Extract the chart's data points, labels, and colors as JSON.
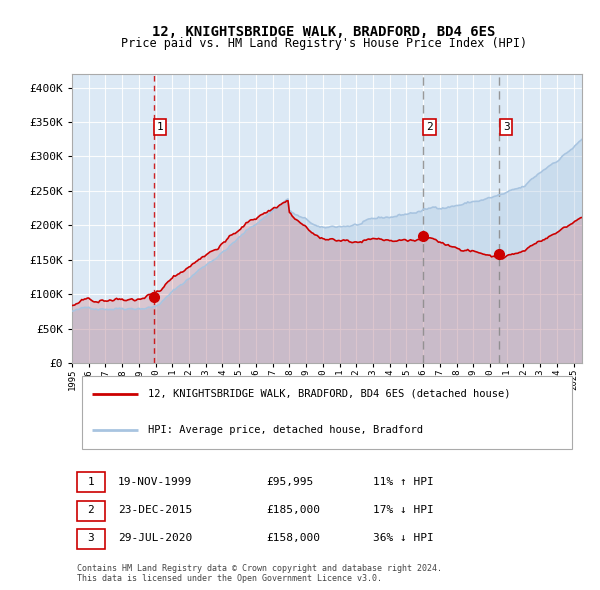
{
  "title": "12, KNIGHTSBRIDGE WALK, BRADFORD, BD4 6ES",
  "subtitle": "Price paid vs. HM Land Registry's House Price Index (HPI)",
  "transactions": [
    {
      "num": 1,
      "date": "19-NOV-1999",
      "price": 95995,
      "pct": "11%",
      "dir": "↑",
      "x_year": 1999.88
    },
    {
      "num": 2,
      "date": "23-DEC-2015",
      "price": 185000,
      "pct": "17%",
      "dir": "↓",
      "x_year": 2015.97
    },
    {
      "num": 3,
      "date": "29-JUL-2020",
      "price": 158000,
      "pct": "36%",
      "dir": "↓",
      "x_year": 2020.56
    }
  ],
  "legend_line1": "12, KNIGHTSBRIDGE WALK, BRADFORD, BD4 6ES (detached house)",
  "legend_line2": "HPI: Average price, detached house, Bradford",
  "footer": "Contains HM Land Registry data © Crown copyright and database right 2024.\nThis data is licensed under the Open Government Licence v3.0.",
  "hpi_color": "#a8c4e0",
  "price_color": "#cc0000",
  "vline1_color": "#cc0000",
  "vline2_color": "#888888",
  "bg_color": "#dce9f5",
  "ylim": [
    0,
    420000
  ],
  "xlim_start": 1995.0,
  "xlim_end": 2025.5
}
